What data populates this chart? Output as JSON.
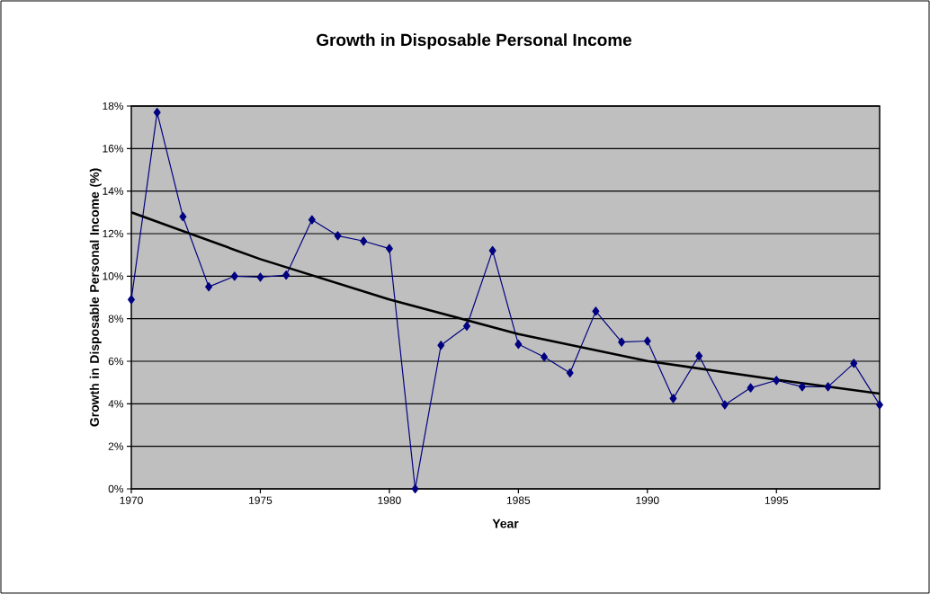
{
  "chart_data": {
    "type": "line",
    "title": "Growth in Disposable Personal Income",
    "xlabel": "Year",
    "ylabel": "Growth in Disposable Personal Income (%)",
    "x": [
      1970,
      1971,
      1972,
      1973,
      1974,
      1975,
      1976,
      1977,
      1978,
      1979,
      1980,
      1981,
      1982,
      1983,
      1984,
      1985,
      1986,
      1987,
      1988,
      1989,
      1990,
      1991,
      1992,
      1993,
      1994,
      1995,
      1996,
      1997,
      1998,
      1999
    ],
    "series": [
      {
        "color": "#000080",
        "values": [
          8.9,
          17.7,
          12.8,
          9.5,
          10.0,
          9.95,
          10.05,
          12.65,
          11.9,
          11.65,
          11.3,
          0,
          6.75,
          7.65,
          11.2,
          6.8,
          6.2,
          5.45,
          8.35,
          6.9,
          6.95,
          4.25,
          6.25,
          3.95,
          4.75,
          5.1,
          4.8,
          4.8,
          5.9,
          3.95
        ]
      },
      {
        "type": "line",
        "color": "#000000",
        "marker": "none",
        "x": [
          1970,
          1975,
          1980,
          1985,
          1990,
          1995,
          1999
        ],
        "values": [
          13.0,
          10.8,
          8.9,
          7.28,
          6.01,
          5.13,
          4.48
        ]
      }
    ],
    "xlim": [
      1970,
      1999
    ],
    "xticks": [
      1970,
      1975,
      1980,
      1985,
      1990,
      1995
    ],
    "ylim": [
      0,
      18
    ],
    "yticks": [
      {
        "value": 0,
        "label": "0%"
      },
      {
        "value": 2,
        "label": "2%"
      },
      {
        "value": 4,
        "label": "4%"
      },
      {
        "value": 6,
        "label": "6%"
      },
      {
        "value": 8,
        "label": "8%"
      },
      {
        "value": 10,
        "label": "10%"
      },
      {
        "value": 12,
        "label": "12%"
      },
      {
        "value": 14,
        "label": "14%"
      },
      {
        "value": 16,
        "label": "16%"
      },
      {
        "value": 18,
        "label": "18%"
      }
    ],
    "grid": "y",
    "marker": "diamond"
  }
}
